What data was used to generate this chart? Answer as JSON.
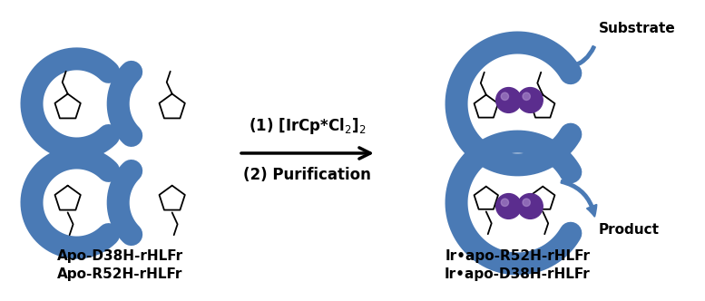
{
  "bg_color": "#ffffff",
  "arc_color": "#4a7ab5",
  "ir_color_1": "#5b2d8e",
  "ir_color_2": "#6b3aa0",
  "ir_highlight": "#b090d0",
  "label_left_1": "Apo-D38H-rHLFr",
  "label_left_2": "Apo-R52H-rHLFr",
  "label_right_1": "Ir•apo-R52H-rHLFr",
  "label_right_2": "Ir•apo-D38H-rHLFr",
  "reaction_text1": "(1) [IrCp*Cl$_2$]$_2$",
  "reaction_text2": "(2) Purification",
  "substrate_label": "Substrate",
  "product_label": "Product",
  "font_size_labels": 11,
  "font_size_reaction": 12
}
